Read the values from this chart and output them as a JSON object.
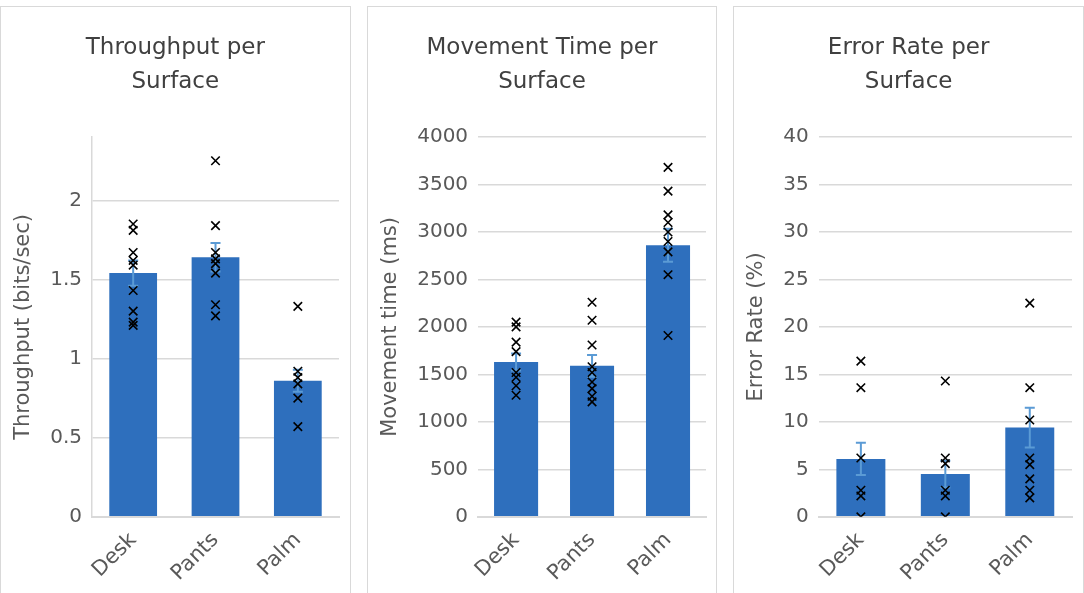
{
  "chart_data": [
    {
      "type": "bar",
      "title": "Throughput per Surface",
      "ylabel": "Throughput (bits/sec)",
      "categories": [
        "Desk",
        "Pants",
        "Palm"
      ],
      "grid": "y",
      "legend": false,
      "marker": "cross",
      "ylim": [
        0,
        2.4
      ],
      "yticks": [
        0,
        0.5,
        1,
        1.5,
        2
      ],
      "series": [
        {
          "color": "#2e6fbd",
          "values": [
            1.54,
            1.64,
            0.86
          ],
          "errors": [
            0.08,
            0.09,
            0.07
          ]
        },
        {
          "type": "scatter",
          "color": "#000000",
          "x": [
            "Desk",
            "Desk",
            "Desk",
            "Desk",
            "Desk",
            "Desk",
            "Desk",
            "Desk",
            "Desk",
            "Pants",
            "Pants",
            "Pants",
            "Pants",
            "Pants",
            "Pants",
            "Pants",
            "Pants",
            "Palm",
            "Palm",
            "Palm",
            "Palm",
            "Palm",
            "Palm"
          ],
          "values": [
            1.85,
            1.81,
            1.67,
            1.62,
            1.59,
            1.43,
            1.3,
            1.23,
            1.21,
            2.25,
            1.84,
            1.67,
            1.63,
            1.6,
            1.54,
            1.34,
            1.27,
            1.33,
            0.92,
            0.88,
            0.84,
            0.75,
            0.57
          ]
        }
      ]
    },
    {
      "type": "bar",
      "title": "Movement Time per Surface",
      "ylabel": "Movement time (ms)",
      "categories": [
        "Desk",
        "Pants",
        "Palm"
      ],
      "grid": "y",
      "legend": false,
      "marker": "cross",
      "ylim": [
        0,
        4000
      ],
      "yticks": [
        0,
        500,
        1000,
        1500,
        2000,
        2500,
        3000,
        3500,
        4000
      ],
      "series": [
        {
          "color": "#2e6fbd",
          "values": [
            1630,
            1590,
            2860
          ],
          "errors": [
            90,
            115,
            175
          ]
        },
        {
          "type": "scatter",
          "color": "#000000",
          "x": [
            "Desk",
            "Desk",
            "Desk",
            "Desk",
            "Desk",
            "Desk",
            "Desk",
            "Desk",
            "Pants",
            "Pants",
            "Pants",
            "Pants",
            "Pants",
            "Pants",
            "Pants",
            "Pants",
            "Pants",
            "Palm",
            "Palm",
            "Palm",
            "Palm",
            "Palm",
            "Palm",
            "Palm",
            "Palm",
            "Palm"
          ],
          "values": [
            2050,
            2000,
            1840,
            1740,
            1520,
            1470,
            1380,
            1280,
            2260,
            2070,
            1810,
            1580,
            1520,
            1420,
            1350,
            1270,
            1210,
            3680,
            3430,
            3180,
            3100,
            3000,
            2900,
            2790,
            2550,
            1910
          ]
        }
      ]
    },
    {
      "type": "bar",
      "title": "Error Rate per Surface",
      "ylabel": "Error Rate (%)",
      "categories": [
        "Desk",
        "Pants",
        "Palm"
      ],
      "grid": "y",
      "legend": false,
      "marker": "cross",
      "ylim": [
        0,
        40
      ],
      "yticks": [
        0,
        5,
        10,
        15,
        20,
        25,
        30,
        35,
        40
      ],
      "series": [
        {
          "color": "#2e6fbd",
          "values": [
            6.1,
            4.5,
            9.4
          ],
          "errors": [
            1.7,
            1.4,
            2.1
          ]
        },
        {
          "type": "scatter",
          "color": "#000000",
          "x": [
            "Desk",
            "Desk",
            "Desk",
            "Desk",
            "Desk",
            "Desk",
            "Pants",
            "Pants",
            "Pants",
            "Pants",
            "Pants",
            "Pants",
            "Palm",
            "Palm",
            "Palm",
            "Palm",
            "Palm",
            "Palm",
            "Palm",
            "Palm"
          ],
          "values": [
            16.4,
            13.6,
            6.2,
            2.8,
            2.2,
            0,
            14.3,
            6.2,
            5.6,
            2.8,
            2.2,
            0,
            22.5,
            13.6,
            10.2,
            6.2,
            5.5,
            4,
            2.8,
            2
          ]
        }
      ]
    }
  ]
}
